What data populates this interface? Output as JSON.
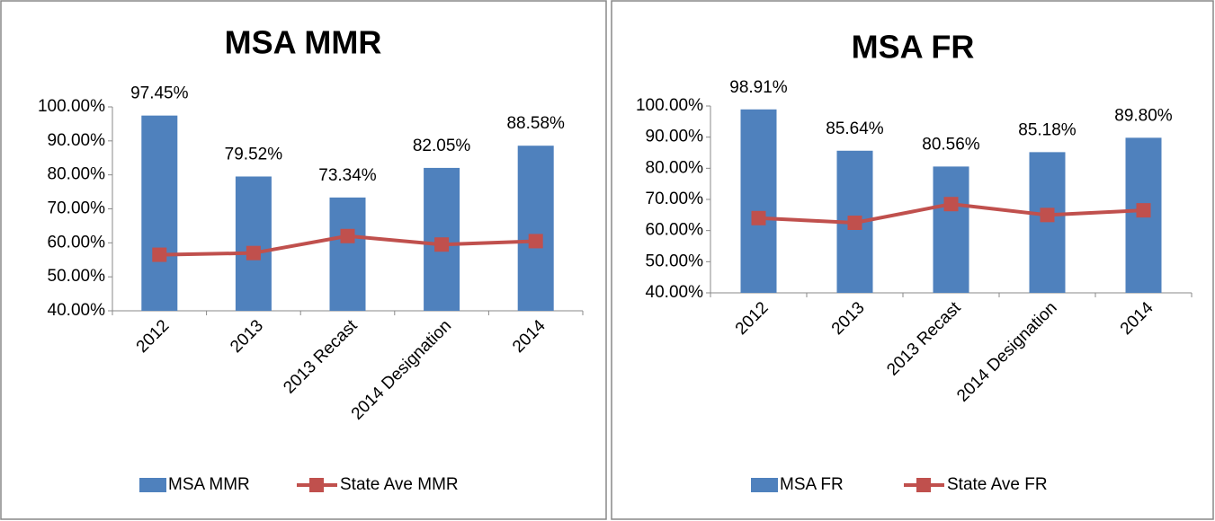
{
  "chart_data": [
    {
      "type": "bar_line",
      "title": "MSA MMR",
      "categories": [
        "2012",
        "2013",
        "2013 Recast",
        "2014 Designation",
        "2014"
      ],
      "series": [
        {
          "name": "MSA MMR",
          "color": "#4f81bd",
          "kind": "bar",
          "values": [
            97.45,
            79.52,
            73.34,
            82.05,
            88.58
          ],
          "value_labels": [
            "97.45%",
            "79.52%",
            "73.34%",
            "82.05%",
            "88.58%"
          ]
        },
        {
          "name": "State Ave MMR",
          "color": "#c0504d",
          "kind": "line",
          "values": [
            56.5,
            57,
            62,
            59.5,
            60.5
          ]
        }
      ],
      "ylim": [
        40,
        100
      ],
      "yticks": [
        {
          "value": 40,
          "label": "40.00%"
        },
        {
          "value": 50,
          "label": "50.00%"
        },
        {
          "value": 60,
          "label": "60.00%"
        },
        {
          "value": 70,
          "label": "70.00%"
        },
        {
          "value": 80,
          "label": "80.00%"
        },
        {
          "value": 90,
          "label": "90.00%"
        },
        {
          "value": 100,
          "label": "100.00%"
        }
      ],
      "grid": false,
      "legend": "bottom"
    },
    {
      "type": "bar_line",
      "title": "MSA FR",
      "categories": [
        "2012",
        "2013",
        "2013 Recast",
        "2014 Designation",
        "2014"
      ],
      "series": [
        {
          "name": "MSA FR",
          "color": "#4f81bd",
          "kind": "bar",
          "values": [
            98.91,
            85.64,
            80.56,
            85.18,
            89.8
          ],
          "value_labels": [
            "98.91%",
            "85.64%",
            "80.56%",
            "85.18%",
            "89.80%"
          ]
        },
        {
          "name": "State Ave FR",
          "color": "#c0504d",
          "kind": "line",
          "values": [
            64,
            62.5,
            68.5,
            65,
            66.5
          ]
        }
      ],
      "ylim": [
        40,
        100
      ],
      "yticks": [
        {
          "value": 40,
          "label": "40.00%"
        },
        {
          "value": 50,
          "label": "50.00%"
        },
        {
          "value": 60,
          "label": "60.00%"
        },
        {
          "value": 70,
          "label": "70.00%"
        },
        {
          "value": 80,
          "label": "80.00%"
        },
        {
          "value": 90,
          "label": "90.00%"
        },
        {
          "value": 100,
          "label": "100.00%"
        }
      ],
      "grid": false,
      "legend": "bottom"
    }
  ]
}
